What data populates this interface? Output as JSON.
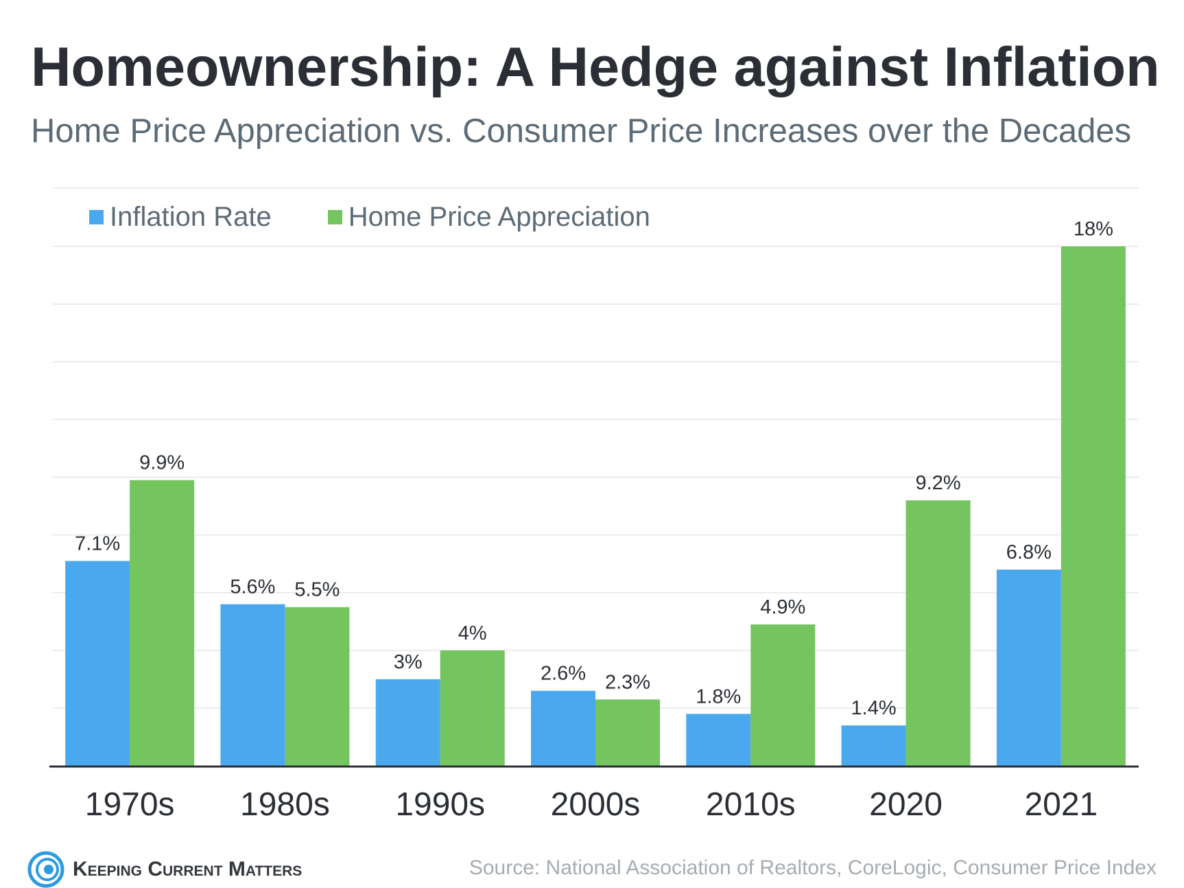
{
  "header": {
    "title": "Homeownership: A Hedge against Inflation",
    "subtitle": "Home Price Appreciation vs. Consumer Price Increases over the Decades"
  },
  "legend": [
    {
      "label": "Inflation Rate",
      "color": "#4aa8ee"
    },
    {
      "label": "Home Price Appreciation",
      "color": "#74c45f"
    }
  ],
  "chart_data": {
    "type": "bar",
    "title": "Homeownership: A Hedge against Inflation",
    "subtitle": "Home Price Appreciation vs. Consumer Price Increases over the Decades",
    "categories": [
      "1970s",
      "1980s",
      "1990s",
      "2000s",
      "2010s",
      "2020",
      "2021"
    ],
    "series": [
      {
        "name": "Inflation Rate",
        "color": "#4aa8ee",
        "values": [
          7.1,
          5.6,
          3,
          2.6,
          1.8,
          1.4,
          6.8
        ],
        "labels": [
          "7.1%",
          "5.6%",
          "3%",
          "2.6%",
          "1.8%",
          "1.4%",
          "6.8%"
        ]
      },
      {
        "name": "Home Price Appreciation",
        "color": "#74c45f",
        "values": [
          9.9,
          5.5,
          4,
          2.3,
          4.9,
          9.2,
          18
        ],
        "labels": [
          "9.9%",
          "5.5%",
          "4%",
          "2.3%",
          "4.9%",
          "9.2%",
          "18%"
        ]
      }
    ],
    "ylim": [
      0,
      18
    ],
    "grid": true,
    "legend_position": "top-left"
  },
  "footer": {
    "brand": "Keeping Current Matters",
    "source": "Source: National Association of Realtors, CoreLogic, Consumer Price Index"
  }
}
